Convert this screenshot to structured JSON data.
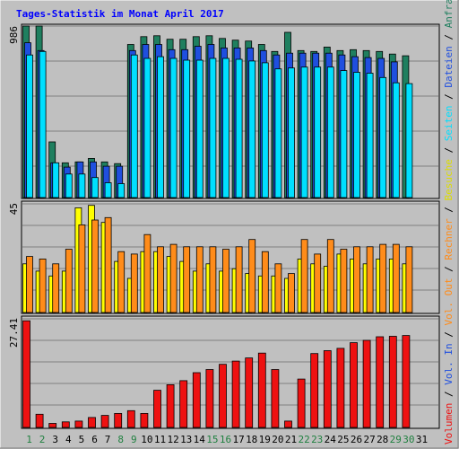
{
  "colors": {
    "background": "#c0c0c0",
    "panel": "#c0c0c0",
    "grid": "#808080",
    "title": "#0000ff",
    "anfragen": "#1f7f5f",
    "dateien": "#1f4fdf",
    "seiten": "#00dfff",
    "besuche": "#ffff00",
    "rechner": "#ff8c1a",
    "vol_out": "#ff8c1a",
    "volumen": "#ee1111",
    "weekend": "#208040",
    "weekday": "#000000"
  },
  "chart_data": [
    {
      "type": "bar",
      "title": "Tages-Statistik im Monat April 2017",
      "ymax_label": "986",
      "ylim": [
        0,
        986
      ],
      "categories": [
        "1",
        "2",
        "3",
        "4",
        "5",
        "6",
        "7",
        "8",
        "9",
        "10",
        "11",
        "12",
        "13",
        "14",
        "15",
        "16",
        "17",
        "18",
        "19",
        "20",
        "21",
        "22",
        "23",
        "24",
        "25",
        "26",
        "27",
        "28",
        "29",
        "30",
        "31"
      ],
      "weekend_days": [
        "1",
        "2",
        "8",
        "9",
        "15",
        "16",
        "22",
        "23",
        "29",
        "30"
      ],
      "series": [
        {
          "name": "Anfragen",
          "values": [
            986,
            986,
            320,
            200,
            205,
            225,
            205,
            195,
            880,
            925,
            930,
            910,
            910,
            925,
            930,
            915,
            905,
            900,
            880,
            840,
            950,
            845,
            840,
            865,
            845,
            850,
            845,
            840,
            825,
            815,
            0
          ]
        },
        {
          "name": "Dateien",
          "values": [
            890,
            845,
            200,
            175,
            205,
            205,
            180,
            180,
            845,
            880,
            880,
            850,
            850,
            870,
            880,
            860,
            860,
            860,
            845,
            820,
            830,
            830,
            830,
            830,
            820,
            810,
            805,
            800,
            780,
            0,
            0
          ]
        },
        {
          "name": "Seiten",
          "values": [
            820,
            840,
            200,
            135,
            135,
            115,
            85,
            80,
            820,
            800,
            810,
            800,
            790,
            790,
            800,
            800,
            795,
            785,
            775,
            740,
            745,
            750,
            750,
            750,
            730,
            720,
            715,
            690,
            660,
            655,
            0
          ]
        }
      ]
    },
    {
      "type": "bar",
      "ymax_label": "45",
      "ylim": [
        0,
        45
      ],
      "categories": [
        "1",
        "2",
        "3",
        "4",
        "5",
        "6",
        "7",
        "8",
        "9",
        "10",
        "11",
        "12",
        "13",
        "14",
        "15",
        "16",
        "17",
        "18",
        "19",
        "20",
        "21",
        "22",
        "23",
        "24",
        "25",
        "26",
        "27",
        "28",
        "29",
        "30",
        "31"
      ],
      "series": [
        {
          "name": "Besuche",
          "values": [
            20,
            17,
            15,
            17,
            43,
            44,
            37,
            21,
            14,
            25,
            25,
            23,
            21,
            17,
            20,
            17,
            18,
            16,
            15,
            15,
            14,
            22,
            20,
            19,
            24,
            22,
            20,
            22,
            22,
            20,
            0
          ]
        },
        {
          "name": "Rechner",
          "values": [
            23,
            22,
            20,
            26,
            36,
            38,
            39,
            25,
            24,
            32,
            27,
            28,
            27,
            27,
            27,
            26,
            27,
            30,
            25,
            20,
            16,
            30,
            24,
            30,
            26,
            27,
            27,
            28,
            28,
            27,
            0
          ]
        }
      ]
    },
    {
      "type": "bar",
      "ymax_label": "27.41",
      "ylim": [
        0,
        27.41
      ],
      "categories": [
        "1",
        "2",
        "3",
        "4",
        "5",
        "6",
        "7",
        "8",
        "9",
        "10",
        "11",
        "12",
        "13",
        "14",
        "15",
        "16",
        "17",
        "18",
        "19",
        "20",
        "21",
        "22",
        "23",
        "24",
        "25",
        "26",
        "27",
        "28",
        "29",
        "30",
        "31"
      ],
      "series": [
        {
          "name": "Volumen",
          "values": [
            26.7,
            3.3,
            1.0,
            1.4,
            1.6,
            2.5,
            3.0,
            3.5,
            4.2,
            3.5,
            9.3,
            10.7,
            11.7,
            13.7,
            14.5,
            15.8,
            16.6,
            17.4,
            18.6,
            14.5,
            1.6,
            12.1,
            18.5,
            19.2,
            19.8,
            21.2,
            21.8,
            22.7,
            22.8,
            23.0,
            0
          ]
        },
        {
          "name": "Vol. Out",
          "values": [
            0,
            0,
            0,
            0,
            0,
            0,
            0,
            0,
            0,
            0,
            0,
            0,
            0,
            0,
            0,
            0,
            0,
            0,
            0,
            0,
            0,
            0,
            0,
            0,
            0,
            0,
            0,
            0,
            0,
            0,
            0
          ]
        },
        {
          "name": "Vol. In",
          "values": [
            0,
            0,
            0,
            0,
            0,
            0,
            0,
            0,
            0,
            0,
            0,
            0,
            0,
            0,
            0,
            0,
            0,
            0,
            0,
            0,
            0,
            0,
            0,
            0,
            0,
            0,
            0,
            0,
            0,
            0,
            0
          ]
        }
      ]
    }
  ],
  "legend_segments": [
    {
      "text": "Volumen",
      "color": "#ee1111"
    },
    {
      "text": " / ",
      "color": "#000000"
    },
    {
      "text": "Vol. In",
      "color": "#1f4fdf"
    },
    {
      "text": " / ",
      "color": "#000000"
    },
    {
      "text": "Vol. Out",
      "color": "#ff8c1a"
    },
    {
      "text": " / ",
      "color": "#000000"
    },
    {
      "text": "Rechner",
      "color": "#ff8c1a"
    },
    {
      "text": " / ",
      "color": "#000000"
    },
    {
      "text": "Besuche",
      "color": "#dddd00"
    },
    {
      "text": " / ",
      "color": "#000000"
    },
    {
      "text": "Seiten",
      "color": "#00dfff"
    },
    {
      "text": " / ",
      "color": "#000000"
    },
    {
      "text": "Dateien",
      "color": "#1f4fdf"
    },
    {
      "text": " / ",
      "color": "#000000"
    },
    {
      "text": "Anfragen",
      "color": "#1f7f5f"
    }
  ]
}
